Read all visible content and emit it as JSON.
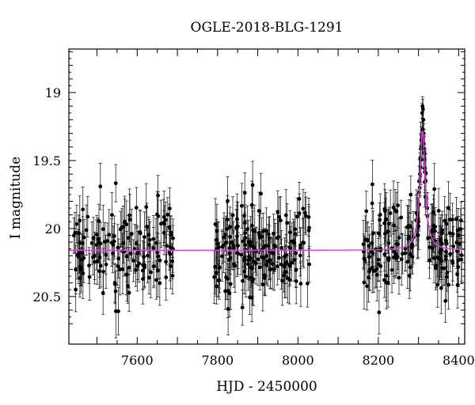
{
  "chart_data": {
    "type": "scatter",
    "title": "OGLE-2018-BLG-1291",
    "xlabel": "HJD - 2450000",
    "ylabel": "I magnitude",
    "xlim": [
      7430,
      8415
    ],
    "ylim": [
      20.85,
      18.68
    ],
    "y_inverted": true,
    "grid": false,
    "xticks": [
      7600,
      7800,
      8000,
      8200,
      8400
    ],
    "yticks": [
      19,
      19.5,
      20,
      20.5
    ],
    "colors": {
      "points": "#000000",
      "model": "#e040e0"
    },
    "series": [
      {
        "kind": "points_with_errorbars",
        "seasons": [
          {
            "x_range": [
              7440,
              7690
            ],
            "mean_mag": 20.18,
            "scatter": 0.17,
            "err_range": [
              0.12,
              0.2
            ],
            "count": 150
          },
          {
            "x_range": [
              7790,
              8030
            ],
            "mean_mag": 20.18,
            "scatter": 0.17,
            "err_range": [
              0.12,
              0.2
            ],
            "count": 190
          },
          {
            "x_range": [
              8160,
              8410
            ],
            "mean_mag": 20.18,
            "scatter": 0.17,
            "err_range": [
              0.12,
              0.2
            ],
            "count": 190
          }
        ],
        "peak_points": [
          [
            8300,
            19.95
          ],
          [
            8303,
            19.7
          ],
          [
            8305,
            19.55
          ],
          [
            8307,
            19.35
          ],
          [
            8309,
            19.15
          ],
          [
            8310,
            19.1
          ],
          [
            8311,
            19.12
          ],
          [
            8312,
            19.2
          ],
          [
            8313,
            19.3
          ],
          [
            8315,
            19.45
          ],
          [
            8318,
            19.65
          ],
          [
            8322,
            19.85
          ]
        ]
      },
      {
        "kind": "model",
        "baseline": 20.16,
        "t0": 8310,
        "peak_mag": 19.28,
        "tE": 10
      }
    ]
  }
}
